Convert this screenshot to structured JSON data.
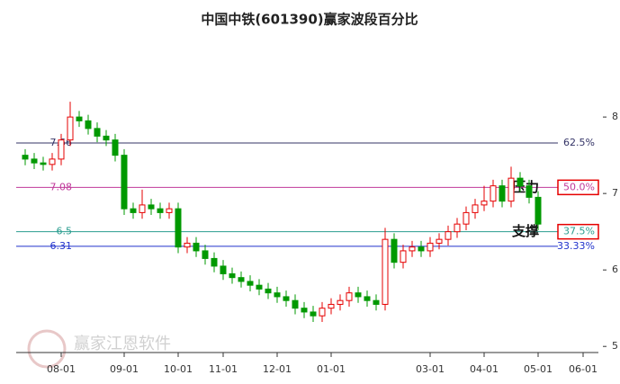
{
  "chart_data": {
    "type": "candlestick",
    "title": "中国中铁(601390)赢家波段百分比",
    "watermark": "赢家江恩软件",
    "categories": [
      null,
      null,
      null,
      null,
      "08-01",
      null,
      null,
      null,
      null,
      null,
      null,
      "09-01",
      null,
      null,
      null,
      null,
      null,
      "10-01",
      null,
      null,
      null,
      null,
      "11-01",
      null,
      null,
      null,
      null,
      null,
      "12-01",
      null,
      null,
      null,
      null,
      null,
      "01-01",
      null,
      null,
      null,
      null,
      null,
      null,
      null,
      null,
      null,
      null,
      "03-01",
      null,
      null,
      null,
      null,
      null,
      "04-01",
      null,
      null,
      null,
      null,
      null,
      "05-01",
      null,
      null,
      null,
      null,
      "06-01",
      null
    ],
    "open": [
      7.5,
      7.45,
      7.4,
      7.38,
      7.45,
      7.7,
      8.0,
      7.95,
      7.85,
      7.75,
      7.7,
      7.5,
      6.8,
      6.75,
      6.85,
      6.8,
      6.75,
      6.8,
      6.3,
      6.35,
      6.25,
      6.15,
      6.05,
      5.95,
      5.9,
      5.85,
      5.8,
      5.75,
      5.7,
      5.65,
      5.6,
      5.5,
      5.45,
      5.4,
      5.5,
      5.55,
      5.6,
      5.7,
      5.65,
      5.6,
      5.55,
      6.4,
      6.1,
      6.25,
      6.3,
      6.25,
      6.35,
      6.4,
      6.5,
      6.6,
      6.75,
      6.85,
      6.9,
      7.1,
      6.9,
      7.2,
      7.1,
      6.95,
      null,
      null,
      null,
      null,
      null,
      null
    ],
    "high": [
      7.58,
      7.53,
      7.48,
      7.53,
      7.78,
      8.2,
      8.08,
      8.03,
      7.93,
      7.83,
      7.78,
      7.58,
      6.88,
      7.05,
      6.93,
      6.88,
      6.88,
      6.88,
      6.43,
      6.43,
      6.33,
      6.23,
      6.13,
      6.03,
      5.98,
      5.93,
      5.88,
      5.83,
      5.78,
      5.73,
      5.68,
      5.58,
      5.53,
      5.58,
      5.63,
      5.68,
      5.78,
      5.78,
      5.73,
      5.68,
      6.55,
      6.48,
      6.33,
      6.38,
      6.38,
      6.43,
      6.48,
      6.58,
      6.68,
      6.83,
      6.93,
      7.1,
      7.18,
      7.18,
      7.35,
      7.28,
      7.18,
      7.03,
      null,
      null,
      null,
      null,
      null,
      null
    ],
    "low": [
      7.37,
      7.32,
      7.3,
      7.3,
      7.37,
      7.62,
      7.87,
      7.77,
      7.67,
      7.62,
      7.42,
      6.72,
      6.67,
      6.67,
      6.72,
      6.67,
      6.67,
      6.22,
      6.22,
      6.17,
      6.07,
      5.97,
      5.87,
      5.82,
      5.77,
      5.72,
      5.67,
      5.62,
      5.57,
      5.52,
      5.42,
      5.37,
      5.32,
      5.32,
      5.42,
      5.47,
      5.52,
      5.57,
      5.52,
      5.47,
      5.47,
      6.02,
      6.02,
      6.17,
      6.17,
      6.17,
      6.27,
      6.32,
      6.42,
      6.52,
      6.67,
      6.77,
      6.82,
      6.82,
      6.82,
      7.02,
      6.87,
      6.52,
      null,
      null,
      null,
      null,
      null,
      null
    ],
    "close": [
      7.45,
      7.4,
      7.38,
      7.45,
      7.7,
      8.0,
      7.95,
      7.85,
      7.75,
      7.7,
      7.5,
      6.8,
      6.75,
      6.85,
      6.8,
      6.75,
      6.8,
      6.3,
      6.35,
      6.25,
      6.15,
      6.05,
      5.95,
      5.9,
      5.85,
      5.8,
      5.75,
      5.7,
      5.65,
      5.6,
      5.5,
      5.45,
      5.4,
      5.5,
      5.55,
      5.6,
      5.7,
      5.65,
      5.6,
      5.55,
      6.4,
      6.1,
      6.25,
      6.3,
      6.25,
      6.35,
      6.4,
      6.5,
      6.6,
      6.75,
      6.85,
      6.9,
      7.1,
      6.9,
      7.2,
      7.1,
      6.95,
      6.6,
      null,
      null,
      null,
      null,
      null,
      null
    ],
    "up_color": "#e60000",
    "down_color": "#009900",
    "ylim": [
      4.92,
      9.06
    ],
    "yticks": [
      5,
      6,
      7,
      8
    ],
    "levels": [
      {
        "value": 7.66,
        "label": "62.5%",
        "color": "#333366",
        "boxed": false
      },
      {
        "value": 7.08,
        "label": "50.0%",
        "color": "#c0399a",
        "boxed": true,
        "annotation": "压力"
      },
      {
        "value": 6.5,
        "label": "37.5%",
        "color": "#2a9d8f",
        "boxed": true,
        "annotation": "支撑"
      },
      {
        "value": 6.31,
        "label": "33.33%",
        "color": "#2233cc",
        "boxed": false
      }
    ]
  }
}
